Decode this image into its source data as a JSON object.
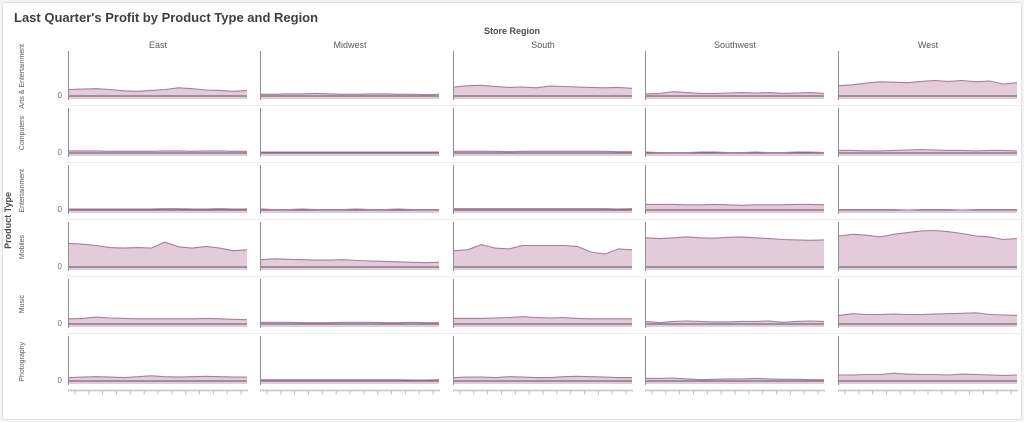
{
  "card": {
    "title": "Last Quarter's Profit by Product Type and Region"
  },
  "chart_data": {
    "type": "area",
    "title": "Last Quarter's Profit by Product Type and Region",
    "layout": "trellis small-multiples, 5 region columns x 6 product-type rows, shared baseline, legend none, x axis shows unlabeled date ticks for the quarter",
    "facet_x_label": "Store Region",
    "facet_y_label": "Product Type",
    "columns": [
      "East",
      "Midwest",
      "South",
      "Southwest",
      "West"
    ],
    "rows": [
      "Arts & Entertainment",
      "Computers",
      "Entertainment",
      "Mobiles",
      "Music",
      "Photography"
    ],
    "y_tick_label": "0",
    "value_units": "relative profit (y axis labeled only at 0; values estimated as % of facet height)",
    "colors": {
      "area_fill": "#e3cbda",
      "line": "#a87e9d",
      "zero_line": "#55565a",
      "axis": "#8f8f8f",
      "tick_axis": "#c2c2c2",
      "text": "#595959"
    },
    "series": [
      {
        "product_type": "Arts & Entertainment",
        "regions": {
          "East": [
            15,
            16,
            17,
            15,
            12,
            11,
            13,
            15,
            19,
            17,
            14,
            13,
            11,
            13
          ],
          "Midwest": [
            4,
            4,
            5,
            5,
            6,
            5,
            4,
            4,
            5,
            5,
            4,
            4,
            3,
            4
          ],
          "South": [
            21,
            24,
            25,
            22,
            20,
            21,
            19,
            23,
            22,
            21,
            20,
            19,
            20,
            18
          ],
          "Southwest": [
            5,
            6,
            10,
            8,
            6,
            6,
            7,
            8,
            7,
            8,
            6,
            7,
            8,
            6
          ],
          "West": [
            24,
            26,
            30,
            33,
            32,
            31,
            34,
            36,
            34,
            36,
            33,
            35,
            28,
            31
          ]
        }
      },
      {
        "product_type": "Computers",
        "regions": {
          "East": [
            5,
            5,
            5,
            4,
            4,
            4,
            4,
            5,
            5,
            4,
            5,
            5,
            4,
            4
          ],
          "Midwest": [
            2,
            2,
            2,
            2,
            2,
            2,
            2,
            2,
            2,
            2,
            2,
            2,
            2,
            2
          ],
          "South": [
            4,
            4,
            4,
            4,
            3,
            4,
            4,
            4,
            4,
            4,
            4,
            4,
            3,
            3
          ],
          "Southwest": [
            2,
            1,
            1,
            1,
            2,
            2,
            1,
            1,
            2,
            1,
            1,
            2,
            2,
            1
          ],
          "West": [
            6,
            6,
            5,
            5,
            6,
            7,
            8,
            7,
            6,
            6,
            5,
            6,
            6,
            5
          ]
        }
      },
      {
        "product_type": "Entertainment",
        "regions": {
          "East": [
            2,
            2,
            2,
            2,
            2,
            2,
            2,
            3,
            3,
            2,
            2,
            3,
            2,
            2
          ],
          "Midwest": [
            2,
            1,
            1,
            2,
            1,
            1,
            1,
            2,
            1,
            1,
            2,
            1,
            1,
            1
          ],
          "South": [
            3,
            3,
            3,
            3,
            3,
            3,
            3,
            3,
            3,
            3,
            3,
            3,
            2,
            3
          ],
          "Southwest": [
            13,
            13,
            13,
            12,
            12,
            13,
            12,
            11,
            12,
            12,
            12,
            13,
            13,
            12
          ],
          "West": [
            1,
            1,
            1,
            1,
            1,
            0,
            1,
            1,
            1,
            0,
            1,
            1,
            1,
            1
          ]
        }
      },
      {
        "product_type": "Mobiles",
        "regions": {
          "East": [
            55,
            53,
            50,
            45,
            44,
            45,
            44,
            58,
            47,
            44,
            48,
            44,
            38,
            40
          ],
          "Midwest": [
            17,
            19,
            18,
            17,
            16,
            16,
            17,
            15,
            14,
            13,
            12,
            11,
            10,
            11
          ],
          "South": [
            38,
            40,
            52,
            44,
            42,
            50,
            50,
            50,
            50,
            48,
            35,
            30,
            42,
            40
          ],
          "Southwest": [
            68,
            66,
            68,
            70,
            68,
            67,
            69,
            70,
            68,
            66,
            64,
            63,
            62,
            63
          ],
          "West": [
            72,
            76,
            74,
            70,
            76,
            80,
            84,
            85,
            82,
            78,
            72,
            70,
            64,
            66
          ]
        }
      },
      {
        "product_type": "Music",
        "regions": {
          "East": [
            12,
            13,
            16,
            14,
            13,
            12,
            12,
            12,
            12,
            12,
            13,
            12,
            11,
            10
          ],
          "Midwest": [
            4,
            4,
            4,
            3,
            3,
            3,
            4,
            4,
            4,
            3,
            3,
            4,
            3,
            3
          ],
          "South": [
            13,
            13,
            13,
            14,
            15,
            17,
            15,
            14,
            15,
            13,
            12,
            12,
            12,
            12
          ],
          "Southwest": [
            6,
            3,
            6,
            7,
            6,
            5,
            5,
            6,
            6,
            7,
            4,
            6,
            7,
            6
          ],
          "West": [
            20,
            24,
            22,
            22,
            23,
            22,
            22,
            23,
            24,
            25,
            26,
            22,
            21,
            20
          ]
        }
      },
      {
        "product_type": "Photography",
        "regions": {
          "East": [
            8,
            9,
            10,
            9,
            8,
            10,
            12,
            10,
            9,
            10,
            11,
            10,
            9,
            9
          ],
          "Midwest": [
            3,
            3,
            3,
            3,
            3,
            3,
            3,
            3,
            3,
            3,
            3,
            2,
            2,
            3
          ],
          "South": [
            8,
            9,
            9,
            8,
            10,
            9,
            8,
            8,
            10,
            11,
            10,
            9,
            8,
            8
          ],
          "Southwest": [
            6,
            6,
            7,
            5,
            3,
            4,
            5,
            5,
            6,
            5,
            4,
            4,
            3,
            3
          ],
          "West": [
            14,
            14,
            15,
            15,
            18,
            16,
            15,
            15,
            14,
            16,
            15,
            14,
            13,
            14
          ]
        }
      }
    ]
  }
}
